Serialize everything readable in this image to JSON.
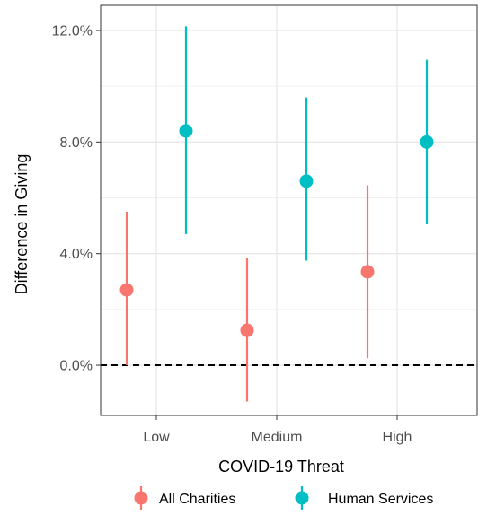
{
  "chart_data": {
    "type": "scatter",
    "subtype": "pointrange",
    "xlabel": "COVID-19 Threat",
    "ylabel": "Difference in Giving",
    "categories": [
      "Low",
      "Medium",
      "High"
    ],
    "yticks": [
      "0.0%",
      "4.0%",
      "8.0%",
      "12.0%"
    ],
    "ytick_values": [
      0,
      4,
      8,
      12
    ],
    "ylim": [
      -1.8,
      12.9
    ],
    "reference_line": {
      "y": 0,
      "style": "dashed"
    },
    "grid": true,
    "legend_position": "bottom",
    "series": [
      {
        "name": "All Charities",
        "color": "#F8766D",
        "points": [
          {
            "x": "Low",
            "y": 2.7,
            "low": 0.0,
            "high": 5.5
          },
          {
            "x": "Medium",
            "y": 1.25,
            "low": -1.3,
            "high": 3.85
          },
          {
            "x": "High",
            "y": 3.35,
            "low": 0.25,
            "high": 6.45
          }
        ]
      },
      {
        "name": "Human Services",
        "color": "#00BFC4",
        "points": [
          {
            "x": "Low",
            "y": 8.4,
            "low": 4.7,
            "high": 12.15
          },
          {
            "x": "Medium",
            "y": 6.6,
            "low": 3.75,
            "high": 9.6
          },
          {
            "x": "High",
            "y": 8.0,
            "low": 5.05,
            "high": 10.95
          }
        ]
      }
    ]
  }
}
